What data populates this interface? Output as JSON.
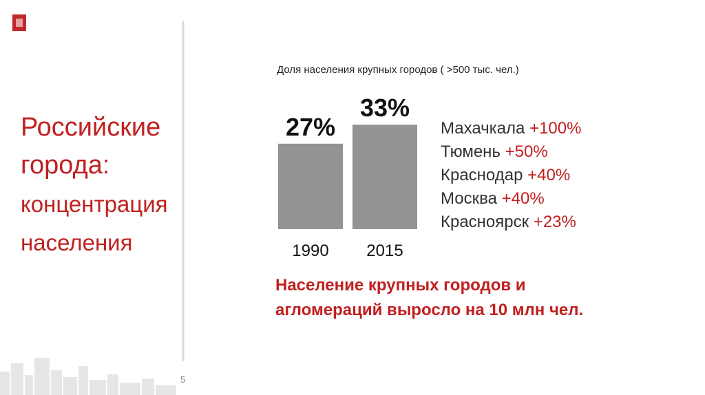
{
  "slide_title": [
    "Российские",
    "города:",
    "концентрация",
    "населения"
  ],
  "chart_data": {
    "type": "bar",
    "title": "Доля населения крупных городов ( >500 тыс. чел.)",
    "categories": [
      "1990",
      "2015"
    ],
    "values": [
      27,
      33
    ],
    "value_labels": [
      "27%",
      "33%"
    ],
    "color": "#939393"
  },
  "cities": [
    {
      "name": "Махачкала",
      "growth": "+100%"
    },
    {
      "name": "Тюмень",
      "growth": "+50%"
    },
    {
      "name": "Краснодар",
      "growth": "+40%"
    },
    {
      "name": "Москва",
      "growth": "+40%"
    },
    {
      "name": "Красноярск",
      "growth": "+23%"
    }
  ],
  "note": [
    "Население крупных городов и",
    "агломераций выросло на 10 млн чел."
  ],
  "page_number": "5"
}
